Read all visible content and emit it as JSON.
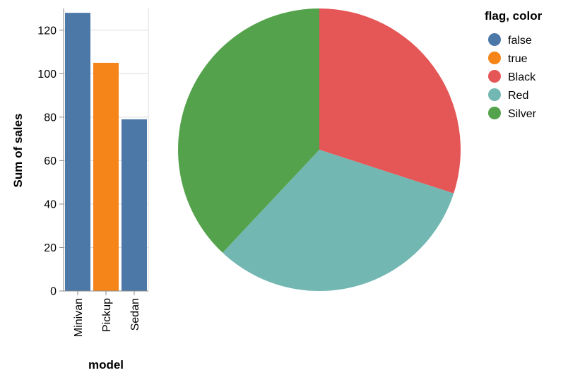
{
  "chart_data": [
    {
      "type": "bar",
      "categories": [
        "Minivan",
        "Pickup",
        "Sedan"
      ],
      "values": [
        128,
        105,
        79
      ],
      "flags": [
        "false",
        "true",
        "false"
      ],
      "xlabel": "model",
      "ylabel": "Sum of sales",
      "ylim": [
        0,
        130
      ],
      "yticks": [
        0,
        20,
        40,
        60,
        80,
        100,
        120
      ],
      "grid": true
    },
    {
      "type": "pie",
      "slices": [
        {
          "label": "Black",
          "value": 30
        },
        {
          "label": "Red",
          "value": 32
        },
        {
          "label": "Silver",
          "value": 38
        }
      ],
      "order": "clockwise from top"
    }
  ],
  "legend": {
    "title": "flag, color",
    "placement": "right",
    "items": [
      {
        "label": "false",
        "color": "#4c78a8"
      },
      {
        "label": "true",
        "color": "#f58518"
      },
      {
        "label": "Black",
        "color": "#e45756"
      },
      {
        "label": "Red",
        "color": "#72b7b2"
      },
      {
        "label": "Silver",
        "color": "#54a24b"
      }
    ]
  }
}
